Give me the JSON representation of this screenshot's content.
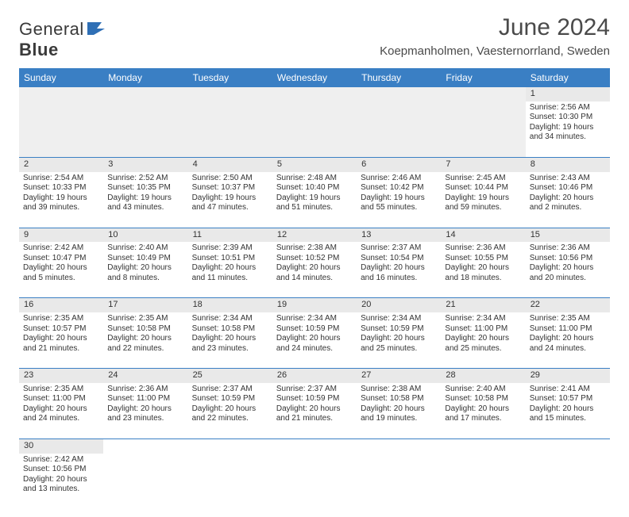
{
  "logo": {
    "part1": "General",
    "part2": "Blue"
  },
  "title": "June 2024",
  "location": "Koepmanholmen, Vaesternorrland, Sweden",
  "headers": [
    "Sunday",
    "Monday",
    "Tuesday",
    "Wednesday",
    "Thursday",
    "Friday",
    "Saturday"
  ],
  "colors": {
    "header_bg": "#3a7fc4",
    "header_text": "#ffffff",
    "daynum_bg": "#e9e9e9",
    "border": "#3a7fc4"
  },
  "fonts": {
    "title_size": 30,
    "location_size": 15,
    "header_size": 12,
    "cell_size": 10
  },
  "weeks": [
    [
      null,
      null,
      null,
      null,
      null,
      null,
      {
        "n": "1",
        "sr": "Sunrise: 2:56 AM",
        "ss": "Sunset: 10:30 PM",
        "d1": "Daylight: 19 hours",
        "d2": "and 34 minutes."
      }
    ],
    [
      {
        "n": "2",
        "sr": "Sunrise: 2:54 AM",
        "ss": "Sunset: 10:33 PM",
        "d1": "Daylight: 19 hours",
        "d2": "and 39 minutes."
      },
      {
        "n": "3",
        "sr": "Sunrise: 2:52 AM",
        "ss": "Sunset: 10:35 PM",
        "d1": "Daylight: 19 hours",
        "d2": "and 43 minutes."
      },
      {
        "n": "4",
        "sr": "Sunrise: 2:50 AM",
        "ss": "Sunset: 10:37 PM",
        "d1": "Daylight: 19 hours",
        "d2": "and 47 minutes."
      },
      {
        "n": "5",
        "sr": "Sunrise: 2:48 AM",
        "ss": "Sunset: 10:40 PM",
        "d1": "Daylight: 19 hours",
        "d2": "and 51 minutes."
      },
      {
        "n": "6",
        "sr": "Sunrise: 2:46 AM",
        "ss": "Sunset: 10:42 PM",
        "d1": "Daylight: 19 hours",
        "d2": "and 55 minutes."
      },
      {
        "n": "7",
        "sr": "Sunrise: 2:45 AM",
        "ss": "Sunset: 10:44 PM",
        "d1": "Daylight: 19 hours",
        "d2": "and 59 minutes."
      },
      {
        "n": "8",
        "sr": "Sunrise: 2:43 AM",
        "ss": "Sunset: 10:46 PM",
        "d1": "Daylight: 20 hours",
        "d2": "and 2 minutes."
      }
    ],
    [
      {
        "n": "9",
        "sr": "Sunrise: 2:42 AM",
        "ss": "Sunset: 10:47 PM",
        "d1": "Daylight: 20 hours",
        "d2": "and 5 minutes."
      },
      {
        "n": "10",
        "sr": "Sunrise: 2:40 AM",
        "ss": "Sunset: 10:49 PM",
        "d1": "Daylight: 20 hours",
        "d2": "and 8 minutes."
      },
      {
        "n": "11",
        "sr": "Sunrise: 2:39 AM",
        "ss": "Sunset: 10:51 PM",
        "d1": "Daylight: 20 hours",
        "d2": "and 11 minutes."
      },
      {
        "n": "12",
        "sr": "Sunrise: 2:38 AM",
        "ss": "Sunset: 10:52 PM",
        "d1": "Daylight: 20 hours",
        "d2": "and 14 minutes."
      },
      {
        "n": "13",
        "sr": "Sunrise: 2:37 AM",
        "ss": "Sunset: 10:54 PM",
        "d1": "Daylight: 20 hours",
        "d2": "and 16 minutes."
      },
      {
        "n": "14",
        "sr": "Sunrise: 2:36 AM",
        "ss": "Sunset: 10:55 PM",
        "d1": "Daylight: 20 hours",
        "d2": "and 18 minutes."
      },
      {
        "n": "15",
        "sr": "Sunrise: 2:36 AM",
        "ss": "Sunset: 10:56 PM",
        "d1": "Daylight: 20 hours",
        "d2": "and 20 minutes."
      }
    ],
    [
      {
        "n": "16",
        "sr": "Sunrise: 2:35 AM",
        "ss": "Sunset: 10:57 PM",
        "d1": "Daylight: 20 hours",
        "d2": "and 21 minutes."
      },
      {
        "n": "17",
        "sr": "Sunrise: 2:35 AM",
        "ss": "Sunset: 10:58 PM",
        "d1": "Daylight: 20 hours",
        "d2": "and 22 minutes."
      },
      {
        "n": "18",
        "sr": "Sunrise: 2:34 AM",
        "ss": "Sunset: 10:58 PM",
        "d1": "Daylight: 20 hours",
        "d2": "and 23 minutes."
      },
      {
        "n": "19",
        "sr": "Sunrise: 2:34 AM",
        "ss": "Sunset: 10:59 PM",
        "d1": "Daylight: 20 hours",
        "d2": "and 24 minutes."
      },
      {
        "n": "20",
        "sr": "Sunrise: 2:34 AM",
        "ss": "Sunset: 10:59 PM",
        "d1": "Daylight: 20 hours",
        "d2": "and 25 minutes."
      },
      {
        "n": "21",
        "sr": "Sunrise: 2:34 AM",
        "ss": "Sunset: 11:00 PM",
        "d1": "Daylight: 20 hours",
        "d2": "and 25 minutes."
      },
      {
        "n": "22",
        "sr": "Sunrise: 2:35 AM",
        "ss": "Sunset: 11:00 PM",
        "d1": "Daylight: 20 hours",
        "d2": "and 24 minutes."
      }
    ],
    [
      {
        "n": "23",
        "sr": "Sunrise: 2:35 AM",
        "ss": "Sunset: 11:00 PM",
        "d1": "Daylight: 20 hours",
        "d2": "and 24 minutes."
      },
      {
        "n": "24",
        "sr": "Sunrise: 2:36 AM",
        "ss": "Sunset: 11:00 PM",
        "d1": "Daylight: 20 hours",
        "d2": "and 23 minutes."
      },
      {
        "n": "25",
        "sr": "Sunrise: 2:37 AM",
        "ss": "Sunset: 10:59 PM",
        "d1": "Daylight: 20 hours",
        "d2": "and 22 minutes."
      },
      {
        "n": "26",
        "sr": "Sunrise: 2:37 AM",
        "ss": "Sunset: 10:59 PM",
        "d1": "Daylight: 20 hours",
        "d2": "and 21 minutes."
      },
      {
        "n": "27",
        "sr": "Sunrise: 2:38 AM",
        "ss": "Sunset: 10:58 PM",
        "d1": "Daylight: 20 hours",
        "d2": "and 19 minutes."
      },
      {
        "n": "28",
        "sr": "Sunrise: 2:40 AM",
        "ss": "Sunset: 10:58 PM",
        "d1": "Daylight: 20 hours",
        "d2": "and 17 minutes."
      },
      {
        "n": "29",
        "sr": "Sunrise: 2:41 AM",
        "ss": "Sunset: 10:57 PM",
        "d1": "Daylight: 20 hours",
        "d2": "and 15 minutes."
      }
    ],
    [
      {
        "n": "30",
        "sr": "Sunrise: 2:42 AM",
        "ss": "Sunset: 10:56 PM",
        "d1": "Daylight: 20 hours",
        "d2": "and 13 minutes."
      },
      null,
      null,
      null,
      null,
      null,
      null
    ]
  ]
}
